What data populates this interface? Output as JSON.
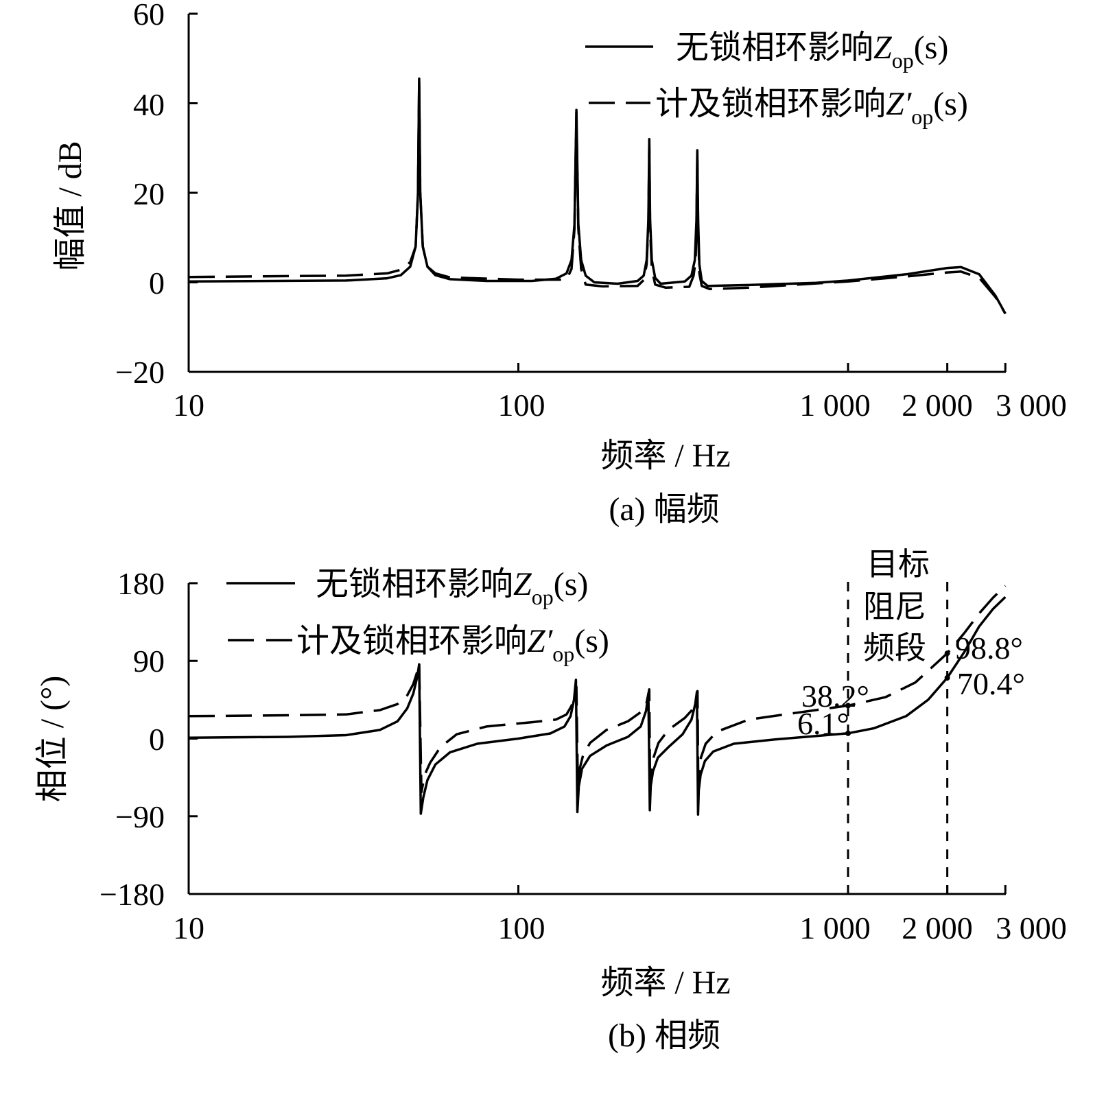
{
  "chart_data": [
    {
      "type": "line",
      "panel": "a",
      "caption": "(a)  幅频",
      "xlabel": "频率 / Hz",
      "ylabel": "幅值 / dB",
      "xscale": "log",
      "xlim": [
        10,
        3000
      ],
      "ylim": [
        -20,
        60
      ],
      "x_tick_labels": [
        "10",
        "100",
        "1 000",
        "2 000",
        "3 000"
      ],
      "x_ticks": [
        10,
        100,
        1000,
        2000,
        3000
      ],
      "y_tick_labels": [
        "60",
        "40",
        "20",
        "0",
        "−20"
      ],
      "y_ticks": [
        60,
        40,
        20,
        0,
        -20
      ],
      "legend_position": "top-right",
      "series": [
        {
          "name": "无锁相环影响Z_op(s)",
          "legend": {
            "prefix": "无锁相环影响",
            "var": "Z",
            "sub": "op",
            "suffix": "(s)"
          },
          "style": "solid",
          "points": [
            [
              10,
              0.2
            ],
            [
              30,
              0.4
            ],
            [
              40,
              0.9
            ],
            [
              44,
              1.6
            ],
            [
              47,
              3.5
            ],
            [
              48.8,
              8
            ],
            [
              49.6,
              20
            ],
            [
              50,
              45.5
            ],
            [
              50.4,
              20
            ],
            [
              51.3,
              8
            ],
            [
              53,
              3.5
            ],
            [
              56,
              1.6
            ],
            [
              62,
              0.7
            ],
            [
              80,
              0.3
            ],
            [
              110,
              0.3
            ],
            [
              130,
              0.8
            ],
            [
              140,
              2
            ],
            [
              145,
              5
            ],
            [
              148,
              13
            ],
            [
              150,
              38.5
            ],
            [
              152,
              13
            ],
            [
              155,
              5
            ],
            [
              160,
              1.5
            ],
            [
              170,
              0
            ],
            [
              200,
              -0.3
            ],
            [
              230,
              0.3
            ],
            [
              240,
              1.5
            ],
            [
              245,
              5
            ],
            [
              248,
              14
            ],
            [
              249.5,
              32
            ],
            [
              251,
              14
            ],
            [
              254,
              5
            ],
            [
              260,
              1
            ],
            [
              270,
              -0.3
            ],
            [
              320,
              0.2
            ],
            [
              335,
              1.5
            ],
            [
              343,
              5
            ],
            [
              347,
              14
            ],
            [
              349,
              29.5
            ],
            [
              351,
              14
            ],
            [
              354,
              4
            ],
            [
              360,
              0.3
            ],
            [
              375,
              -0.8
            ],
            [
              500,
              -0.6
            ],
            [
              800,
              -0.1
            ],
            [
              1000,
              0.4
            ],
            [
              1500,
              1.8
            ],
            [
              2000,
              3.2
            ],
            [
              2200,
              3.4
            ],
            [
              2500,
              1.8
            ],
            [
              2800,
              -3
            ],
            [
              3000,
              -7
            ]
          ]
        },
        {
          "name": "计及锁相环影响Z′_op(s)",
          "legend": {
            "prefix": "计及锁相环影响",
            "var": "Z′",
            "sub": "op",
            "suffix": "(s)"
          },
          "style": "dashed",
          "points": [
            [
              10,
              1.2
            ],
            [
              30,
              1.5
            ],
            [
              40,
              2.0
            ],
            [
              44,
              2.8
            ],
            [
              47,
              4.5
            ],
            [
              48.8,
              8
            ],
            [
              49.6,
              20
            ],
            [
              50,
              45
            ],
            [
              50.4,
              20
            ],
            [
              51.3,
              8
            ],
            [
              53,
              3.5
            ],
            [
              56,
              2
            ],
            [
              62,
              1.1
            ],
            [
              100,
              0.6
            ],
            [
              140,
              0.6
            ],
            [
              145,
              3
            ],
            [
              148,
              12
            ],
            [
              150,
              38
            ],
            [
              152,
              12
            ],
            [
              155,
              3
            ],
            [
              160,
              -0.5
            ],
            [
              180,
              -0.9
            ],
            [
              230,
              -0.8
            ],
            [
              240,
              0.5
            ],
            [
              245,
              4
            ],
            [
              248,
              13
            ],
            [
              249.5,
              31
            ],
            [
              251,
              12
            ],
            [
              254,
              3
            ],
            [
              260,
              -0.5
            ],
            [
              280,
              -1.2
            ],
            [
              330,
              -1.0
            ],
            [
              340,
              1.5
            ],
            [
              345,
              5
            ],
            [
              347,
              13
            ],
            [
              349,
              29
            ],
            [
              351,
              12
            ],
            [
              354,
              2
            ],
            [
              360,
              -0.8
            ],
            [
              380,
              -1.5
            ],
            [
              500,
              -1.2
            ],
            [
              1000,
              0.2
            ],
            [
              1500,
              1.3
            ],
            [
              2000,
              2.2
            ],
            [
              2200,
              2.4
            ],
            [
              2500,
              1.0
            ],
            [
              2800,
              -3.3
            ],
            [
              3000,
              -7
            ]
          ]
        }
      ]
    },
    {
      "type": "line",
      "panel": "b",
      "caption": "(b)  相频",
      "xlabel": "频率 / Hz",
      "ylabel": "相位 / (°)",
      "xscale": "log",
      "xlim": [
        10,
        3000
      ],
      "ylim": [
        -180,
        180
      ],
      "x_tick_labels": [
        "10",
        "100",
        "1 000",
        "2 000",
        "3 000"
      ],
      "x_ticks": [
        10,
        100,
        1000,
        2000,
        3000
      ],
      "y_tick_labels": [
        "180",
        "90",
        "0",
        "−90",
        "−180"
      ],
      "y_ticks": [
        180,
        90,
        0,
        -90,
        -180
      ],
      "legend_position": "top-left",
      "band": {
        "label_lines": [
          "目标",
          "阻尼",
          "频段"
        ],
        "from": 1000,
        "to": 2000
      },
      "annotations": [
        {
          "text": "38.2°",
          "x": 1000,
          "y": 38.2
        },
        {
          "text": "6.1°",
          "x": 1000,
          "y": 6.1
        },
        {
          "text": "98.8°",
          "x": 2000,
          "y": 98.8
        },
        {
          "text": "70.4°",
          "x": 2000,
          "y": 70.4
        }
      ],
      "series": [
        {
          "name": "无锁相环影响Z_op(s)",
          "legend": {
            "prefix": "无锁相环影响",
            "var": "Z",
            "sub": "op",
            "suffix": "(s)"
          },
          "style": "solid",
          "points": [
            [
              10,
              1
            ],
            [
              20,
              2
            ],
            [
              30,
              4
            ],
            [
              38,
              10
            ],
            [
              43,
              20
            ],
            [
              46,
              35
            ],
            [
              48,
              52
            ],
            [
              49.4,
              72
            ],
            [
              50,
              86
            ],
            [
              50.6,
              -87
            ],
            [
              51.5,
              -68
            ],
            [
              53,
              -48
            ],
            [
              56,
              -30
            ],
            [
              62,
              -16
            ],
            [
              75,
              -6
            ],
            [
              100,
              0
            ],
            [
              125,
              6
            ],
            [
              138,
              14
            ],
            [
              144,
              26
            ],
            [
              147.5,
              45
            ],
            [
              149.5,
              68
            ],
            [
              151,
              -85
            ],
            [
              152.5,
              -55
            ],
            [
              156,
              -35
            ],
            [
              165,
              -20
            ],
            [
              185,
              -8
            ],
            [
              215,
              2
            ],
            [
              235,
              14
            ],
            [
              244,
              32
            ],
            [
              248,
              52
            ],
            [
              250.5,
              -83
            ],
            [
              252,
              -55
            ],
            [
              256,
              -38
            ],
            [
              265,
              -22
            ],
            [
              285,
              -10
            ],
            [
              315,
              5
            ],
            [
              335,
              22
            ],
            [
              344,
              40
            ],
            [
              348,
              54
            ],
            [
              350.8,
              -88
            ],
            [
              352.5,
              -60
            ],
            [
              357,
              -42
            ],
            [
              368,
              -26
            ],
            [
              390,
              -15
            ],
            [
              450,
              -6
            ],
            [
              600,
              -1
            ],
            [
              800,
              3
            ],
            [
              1000,
              6.1
            ],
            [
              1200,
              12
            ],
            [
              1500,
              26
            ],
            [
              1750,
              45
            ],
            [
              2000,
              70.4
            ],
            [
              2250,
              100
            ],
            [
              2500,
              130
            ],
            [
              2750,
              150
            ],
            [
              3000,
              164
            ]
          ]
        },
        {
          "name": "计及锁相环影响Z′_op(s)",
          "legend": {
            "prefix": "计及锁相环影响",
            "var": "Z′",
            "sub": "op",
            "suffix": "(s)"
          },
          "style": "dashed",
          "points": [
            [
              10,
              26
            ],
            [
              20,
              27
            ],
            [
              30,
              28
            ],
            [
              38,
              33
            ],
            [
              43,
              40
            ],
            [
              46,
              50
            ],
            [
              48,
              63
            ],
            [
              49.4,
              78
            ],
            [
              50,
              88
            ],
            [
              50.8,
              -62
            ],
            [
              52,
              -42
            ],
            [
              54,
              -28
            ],
            [
              58,
              -10
            ],
            [
              65,
              5
            ],
            [
              80,
              14
            ],
            [
              110,
              19
            ],
            [
              130,
              22
            ],
            [
              140,
              28
            ],
            [
              145,
              38
            ],
            [
              148,
              50
            ],
            [
              150,
              60
            ],
            [
              151.5,
              -55
            ],
            [
              153.5,
              -35
            ],
            [
              157,
              -20
            ],
            [
              165,
              -5
            ],
            [
              185,
              10
            ],
            [
              215,
              20
            ],
            [
              238,
              32
            ],
            [
              245,
              42
            ],
            [
              249.5,
              57
            ],
            [
              251,
              -60
            ],
            [
              253,
              -38
            ],
            [
              257,
              -22
            ],
            [
              266,
              -5
            ],
            [
              285,
              10
            ],
            [
              320,
              24
            ],
            [
              338,
              34
            ],
            [
              345,
              44
            ],
            [
              349.5,
              55
            ],
            [
              351.5,
              -65
            ],
            [
              353.5,
              -40
            ],
            [
              358,
              -22
            ],
            [
              370,
              -6
            ],
            [
              400,
              8
            ],
            [
              500,
              22
            ],
            [
              700,
              30
            ],
            [
              1000,
              38.2
            ],
            [
              1300,
              48
            ],
            [
              1600,
              65
            ],
            [
              2000,
              98.8
            ],
            [
              2250,
              122
            ],
            [
              2500,
              145
            ],
            [
              2750,
              163
            ],
            [
              3000,
              177
            ]
          ]
        }
      ]
    }
  ]
}
